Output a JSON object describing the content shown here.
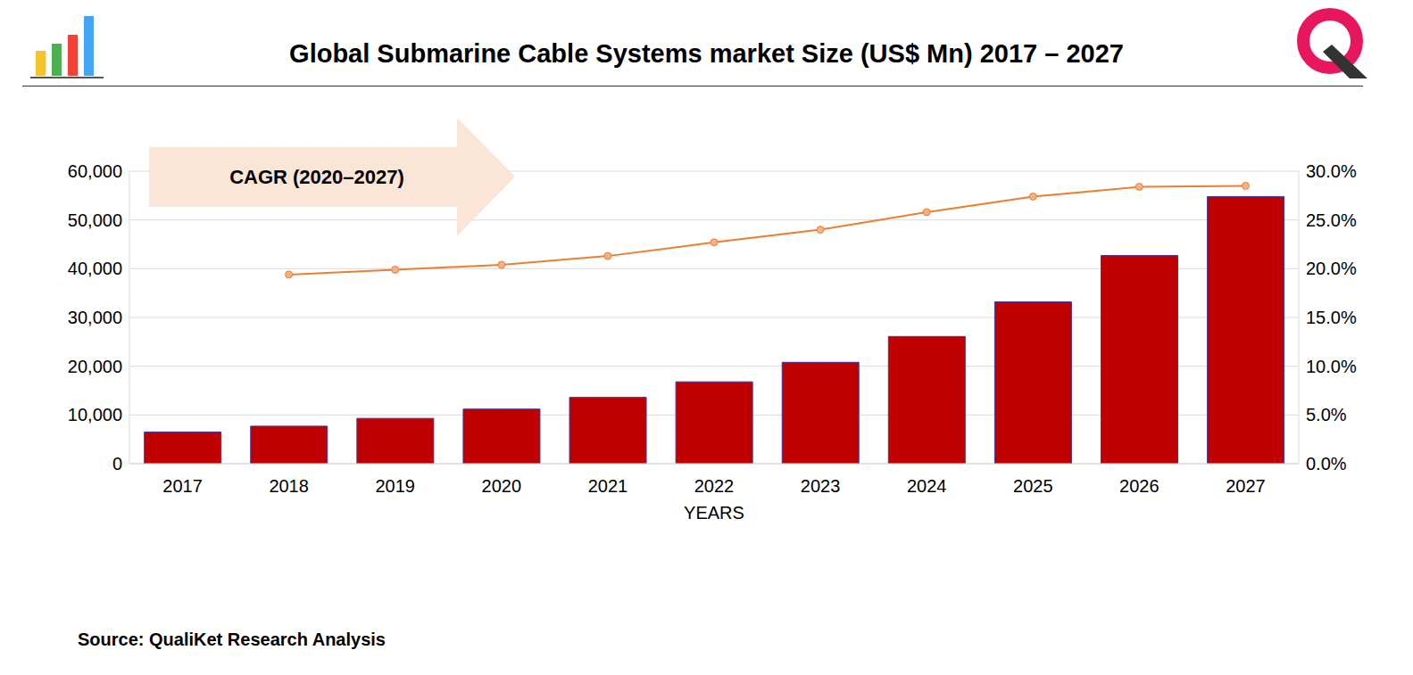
{
  "chart_data": {
    "type": "bar",
    "title": "Global Submarine Cable Systems market Size (US$ Mn) 2017 – 2027",
    "x_label": "YEARS",
    "annotation": "CAGR (2020–2027)",
    "source": "Source: QualiKet Research Analysis",
    "categories": [
      "2017",
      "2018",
      "2019",
      "2020",
      "2021",
      "2022",
      "2023",
      "2024",
      "2025",
      "2026",
      "2027"
    ],
    "series": [
      {
        "type": "bar",
        "color": "#c00000",
        "values": [
          6500,
          7700,
          9300,
          11200,
          13600,
          16800,
          20800,
          26100,
          33200,
          42700,
          54800
        ]
      },
      {
        "type": "line",
        "axis": "y2",
        "color": "#ed7d31",
        "marker": "circle",
        "values": [
          null,
          19.4,
          19.9,
          20.4,
          21.3,
          22.7,
          24.0,
          25.8,
          27.4,
          28.4,
          28.5
        ]
      }
    ],
    "ylim": [
      0,
      60000
    ],
    "yticks": [
      0,
      {
        "value": 10000,
        "label": "10,000"
      },
      {
        "value": 20000,
        "label": "20,000"
      },
      {
        "value": 30000,
        "label": "30,000"
      },
      {
        "value": 40000,
        "label": "40,000"
      },
      {
        "value": 50000,
        "label": "50,000"
      },
      {
        "value": 60000,
        "label": "60,000"
      }
    ],
    "y2lim": [
      0,
      30
    ],
    "y2ticks": [
      {
        "value": 0,
        "label": "0.0%"
      },
      {
        "value": 5,
        "label": "5.0%"
      },
      {
        "value": 10,
        "label": "10.0%"
      },
      {
        "value": 15,
        "label": "15.0%"
      },
      {
        "value": 20,
        "label": "20.0%"
      },
      {
        "value": 25,
        "label": "25.0%"
      },
      {
        "value": 30,
        "label": "30.0%"
      }
    ],
    "grid": true
  }
}
